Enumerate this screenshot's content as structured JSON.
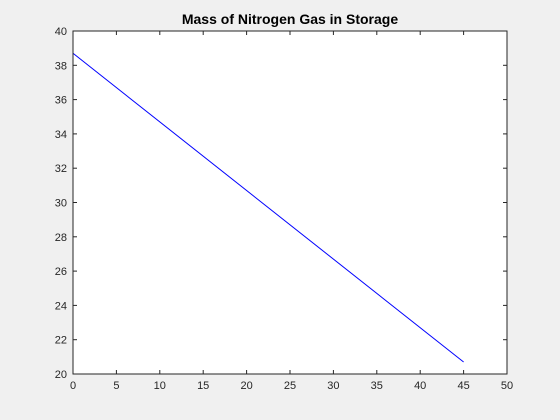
{
  "chart_data": {
    "type": "line",
    "title": "Mass of Nitrogen Gas in Storage",
    "xlabel": "",
    "ylabel": "",
    "xlim": [
      0,
      50
    ],
    "ylim": [
      20,
      40
    ],
    "xticks": [
      0,
      5,
      10,
      15,
      20,
      25,
      30,
      35,
      40,
      45,
      50
    ],
    "yticks": [
      20,
      22,
      24,
      26,
      28,
      30,
      32,
      34,
      36,
      38,
      40
    ],
    "grid": false,
    "legend": "none",
    "series": [
      {
        "color": "#0000ff",
        "x": [
          0,
          45
        ],
        "y": [
          38.7,
          20.7
        ]
      }
    ]
  },
  "colors": {
    "figure_background": "#f0f0f0",
    "axes_background": "#ffffff",
    "axis_color": "#262626",
    "line_color": "#0000ff"
  }
}
